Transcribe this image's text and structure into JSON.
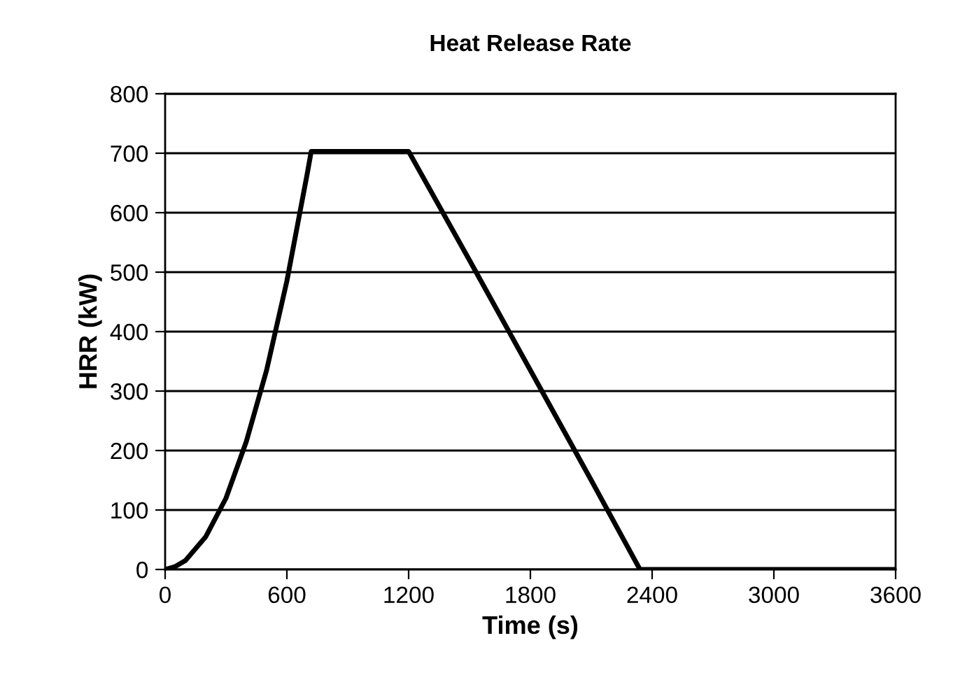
{
  "chart_data": {
    "type": "line",
    "title": "Heat Release Rate",
    "xlabel": "Time (s)",
    "ylabel": "HRR (kW)",
    "series": [
      {
        "color": "#000000",
        "x": [
          0,
          50,
          100,
          200,
          300,
          400,
          500,
          600,
          700,
          720,
          1000,
          1200,
          1500,
          1800,
          2100,
          2340,
          2400,
          3000,
          3600
        ],
        "values": [
          0,
          5,
          15,
          55,
          120,
          215,
          335,
          485,
          665,
          703,
          703,
          703,
          520,
          335,
          150,
          0,
          0,
          0,
          0
        ]
      }
    ],
    "xlim": [
      0,
      3600
    ],
    "xticks": [
      0,
      600,
      1200,
      1800,
      2400,
      3000,
      3600
    ],
    "ylim": [
      0,
      800
    ],
    "yticks": [
      0,
      100,
      200,
      300,
      400,
      500,
      600,
      700,
      800
    ],
    "grid": "y",
    "marker": "none",
    "line_style": "solid"
  }
}
